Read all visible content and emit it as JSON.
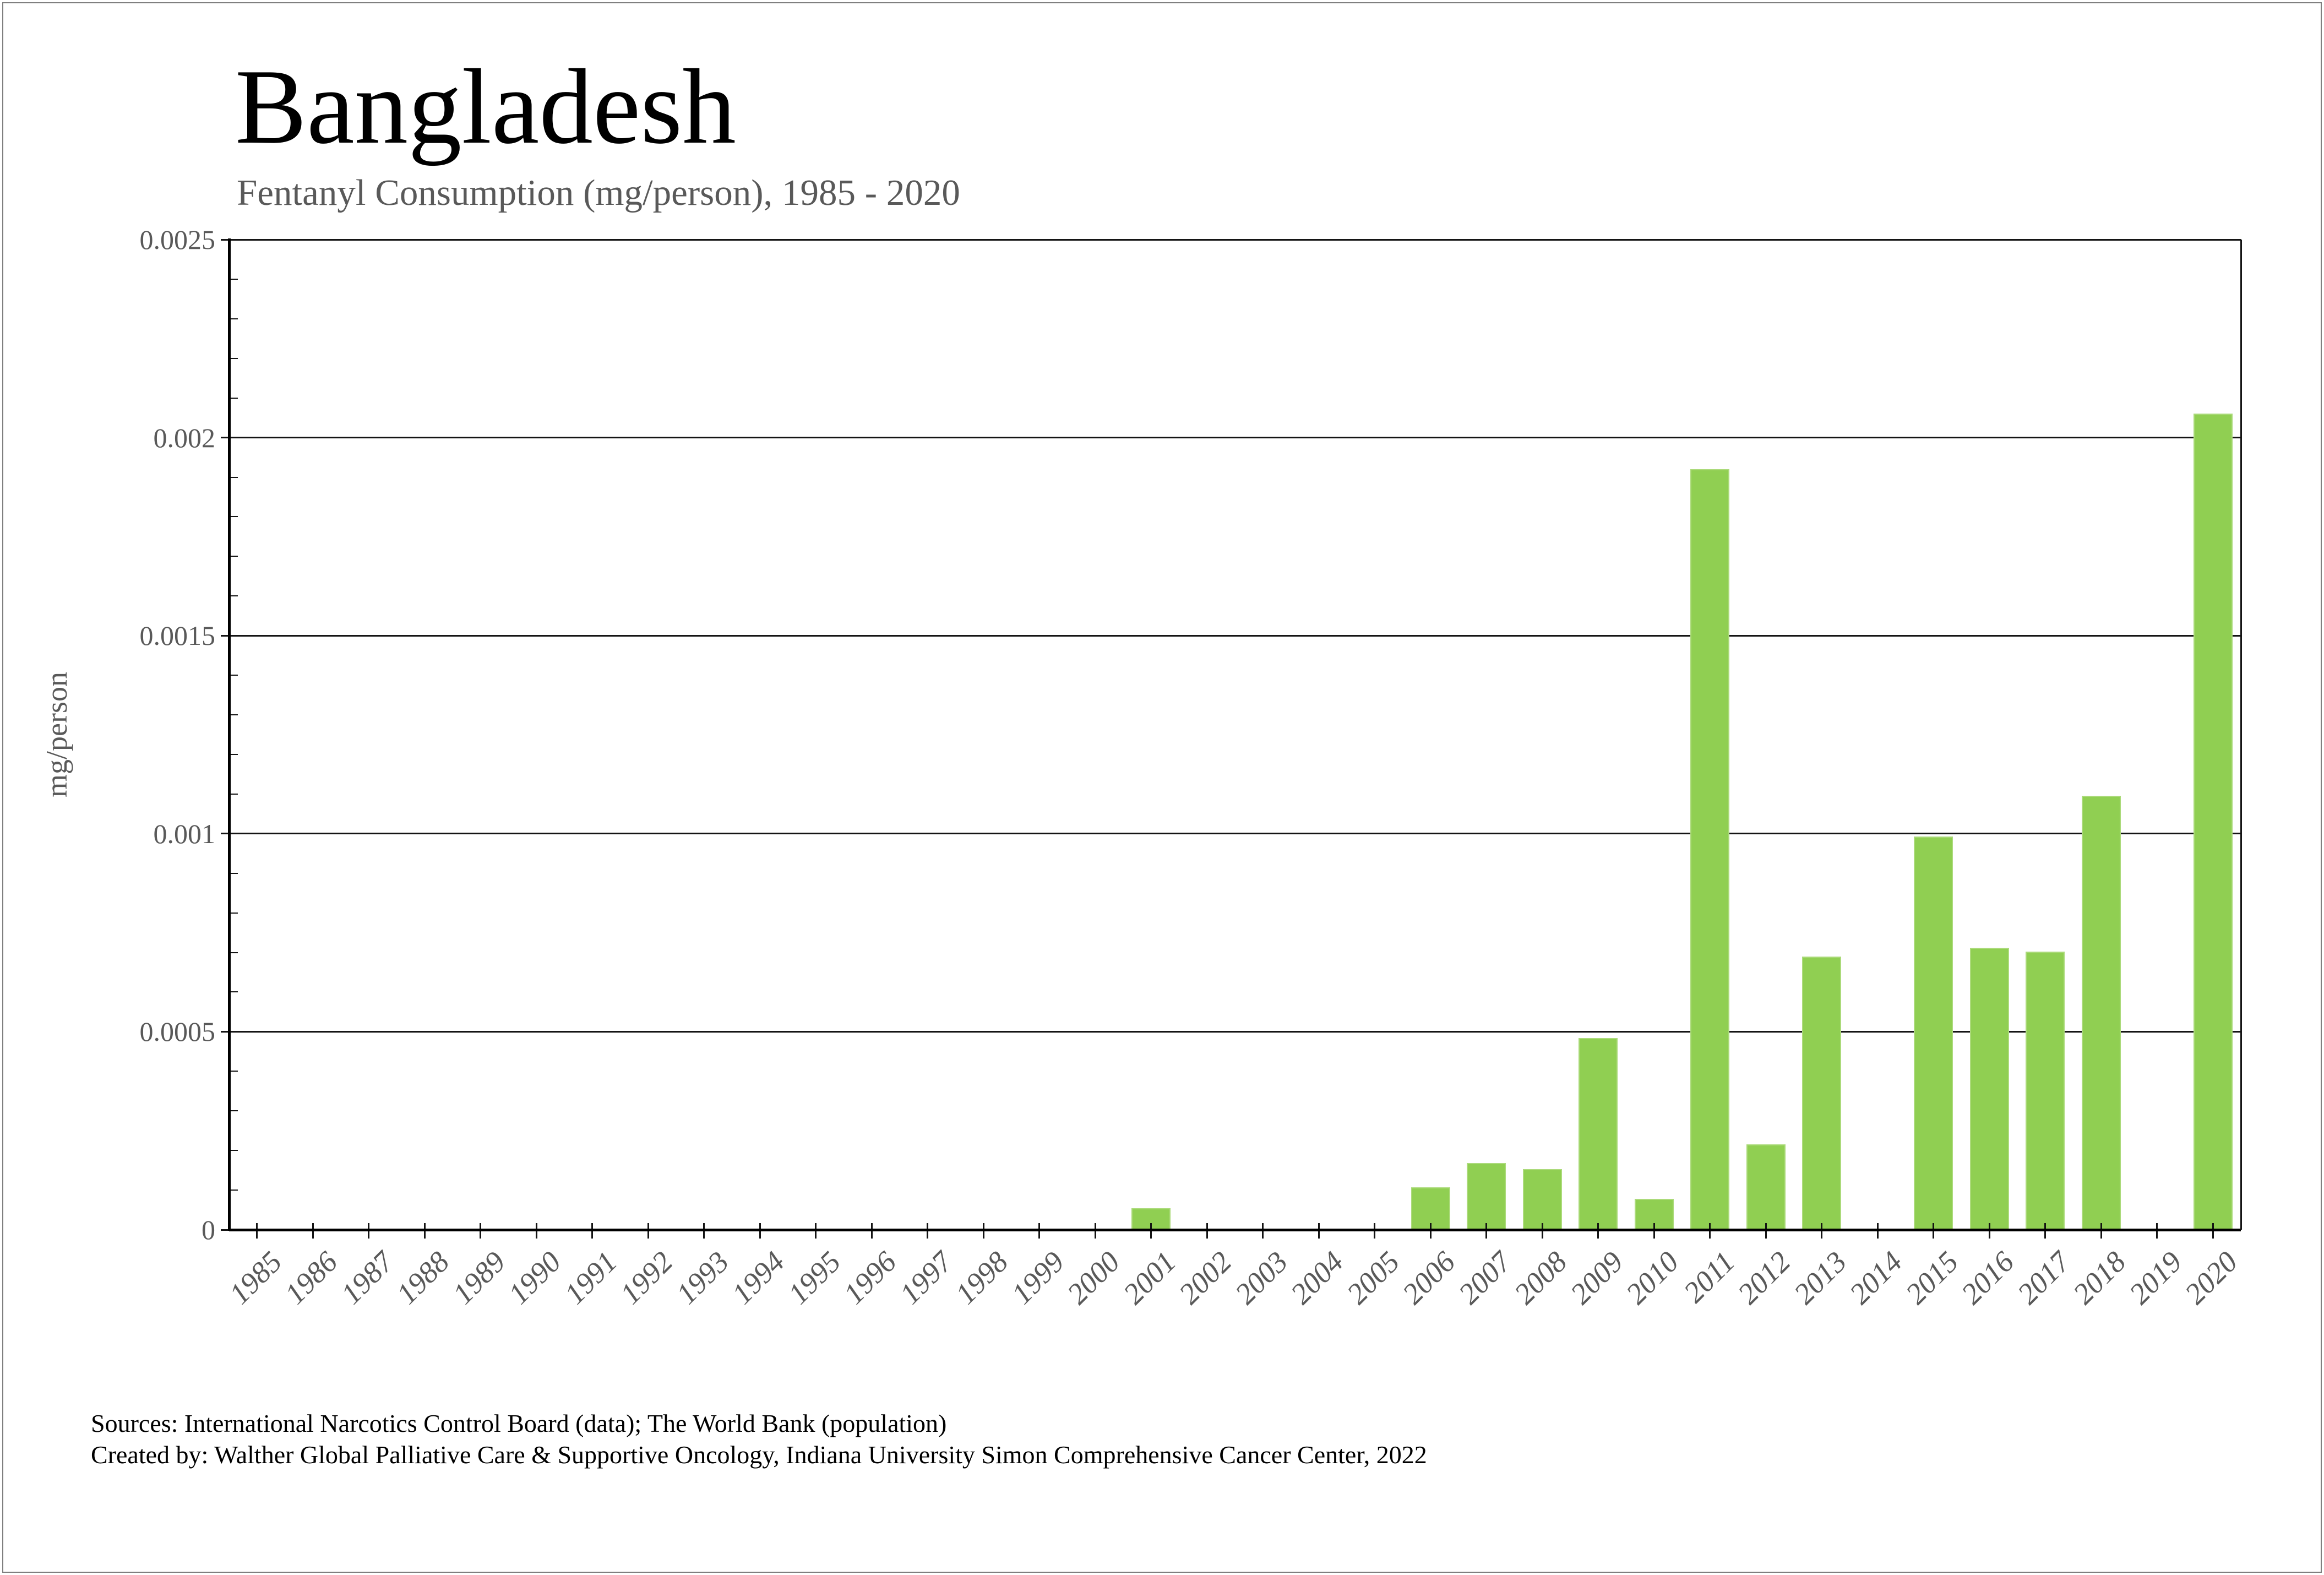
{
  "page": {
    "title": "Bangladesh",
    "subtitle": "Fentanyl Consumption (mg/person), 1985 - 2020",
    "footer": {
      "line1": "Sources: International Narcotics Control Board (data); The World Bank (population)",
      "line2": "Created by: Walther Global Palliative Care & Supportive Oncology, Indiana University Simon Comprehensive Cancer Center, 2022"
    }
  },
  "chart_data": {
    "type": "bar",
    "title": "Bangladesh",
    "subtitle": "Fentanyl Consumption (mg/person), 1985 - 2020",
    "xlabel": "",
    "ylabel": "mg/person",
    "categories": [
      "1985",
      "1986",
      "1987",
      "1988",
      "1989",
      "1990",
      "1991",
      "1992",
      "1993",
      "1994",
      "1995",
      "1996",
      "1997",
      "1998",
      "1999",
      "2000",
      "2001",
      "2002",
      "2003",
      "2004",
      "2005",
      "2006",
      "2007",
      "2008",
      "2009",
      "2010",
      "2011",
      "2012",
      "2013",
      "2014",
      "2015",
      "2016",
      "2017",
      "2018",
      "2019",
      "2020"
    ],
    "values": [
      0,
      0,
      0,
      0,
      0,
      0,
      0,
      0,
      0,
      0,
      0,
      0,
      0,
      0,
      0,
      0,
      5.4e-05,
      0,
      0,
      0,
      0,
      0.000107,
      0.000168,
      0.000153,
      0.000484,
      7.8e-05,
      0.00192,
      0.000215,
      0.000689,
      0,
      0.000993,
      0.000712,
      0.000702,
      0.001096,
      0,
      0.00206
    ],
    "ylim": [
      0,
      0.0025
    ],
    "ytick_values": [
      0,
      0.0005,
      0.001,
      0.0015,
      0.002,
      0.0025
    ],
    "ytick_labels": [
      "0",
      "0.0005",
      "0.001",
      "0.0015",
      "0.002",
      "0.0025"
    ],
    "y_minor_step": 0.0001,
    "grid": "horizontal-major",
    "legend": "none",
    "bar_color": "#90cf52",
    "bar_edge_color": "#abda7a",
    "axis_color": "#000000",
    "gridline_color": "#141414",
    "tick_label_color": "#595959"
  }
}
